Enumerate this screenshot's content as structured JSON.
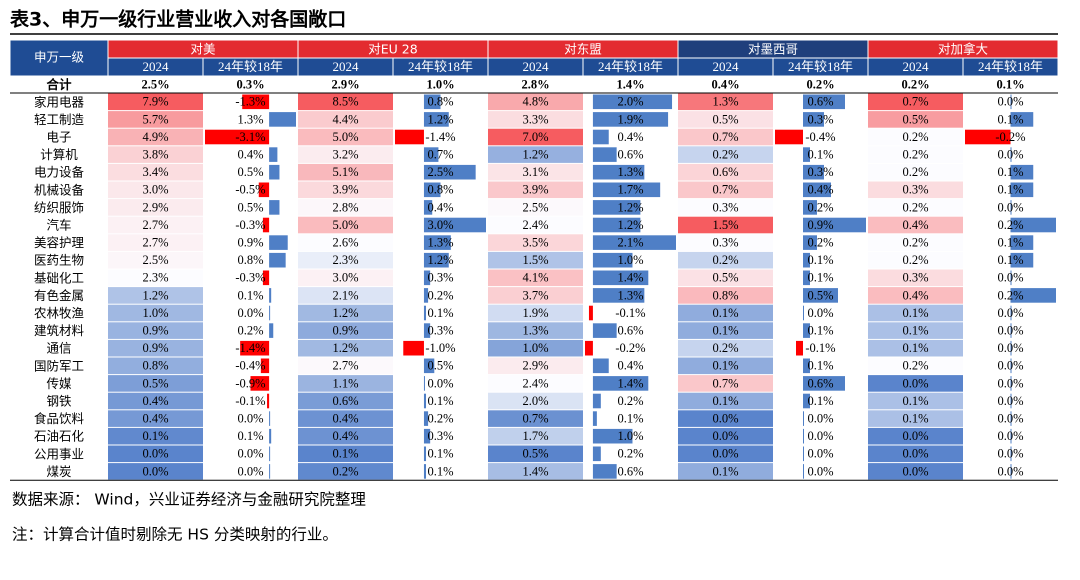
{
  "title": "表3、申万一级行业营业收入对各国敞口",
  "table": {
    "first_header": "申万一级",
    "groups": [
      {
        "name": "对美",
        "color": "#e32b30"
      },
      {
        "name": "对EU 28",
        "color": "#e32b30"
      },
      {
        "name": "对东盟",
        "color": "#e32b30"
      },
      {
        "name": "对墨西哥",
        "color": "#1f3f7c"
      },
      {
        "name": "对加拿大",
        "color": "#e32b30"
      }
    ],
    "header_color": "#1f4c94",
    "subheaders": [
      "2024",
      "24年较18年"
    ],
    "total": {
      "name": "合计",
      "values": [
        2.5,
        0.3,
        2.9,
        1.0,
        2.8,
        1.4,
        0.4,
        0.2,
        0.2,
        0.1
      ],
      "value_labels": [
        "2.5%",
        "0.3%",
        "2.9%",
        "1.0%",
        "2.8%",
        "1.4%",
        "0.4%",
        "0.2%",
        "0.2%",
        "0.1%"
      ]
    },
    "rows": [
      {
        "name": "家用电器",
        "values": [
          7.9,
          -1.3,
          8.5,
          0.8,
          4.8,
          2.0,
          1.3,
          0.6,
          0.7,
          0.0
        ],
        "value_labels": [
          "7.9%",
          "-1.3%",
          "8.5%",
          "0.8%",
          "4.8%",
          "2.0%",
          "1.3%",
          "0.6%",
          "0.7%",
          "0.0%"
        ]
      },
      {
        "name": "轻工制造",
        "values": [
          5.7,
          1.3,
          4.4,
          1.2,
          3.3,
          1.9,
          0.5,
          0.3,
          0.5,
          0.1
        ],
        "value_labels": [
          "5.7%",
          "1.3%",
          "4.4%",
          "1.2%",
          "3.3%",
          "1.9%",
          "0.5%",
          "0.3%",
          "0.5%",
          "0.1%"
        ]
      },
      {
        "name": "电子",
        "values": [
          4.9,
          -3.1,
          5.0,
          -1.4,
          7.0,
          0.4,
          0.7,
          -0.4,
          0.2,
          -0.2
        ],
        "value_labels": [
          "4.9%",
          "-3.1%",
          "5.0%",
          "-1.4%",
          "7.0%",
          "0.4%",
          "0.7%",
          "-0.4%",
          "0.2%",
          "-0.2%"
        ]
      },
      {
        "name": "计算机",
        "values": [
          3.8,
          0.4,
          3.2,
          0.7,
          1.2,
          0.6,
          0.2,
          0.1,
          0.2,
          0.0
        ],
        "value_labels": [
          "3.8%",
          "0.4%",
          "3.2%",
          "0.7%",
          "1.2%",
          "0.6%",
          "0.2%",
          "0.1%",
          "0.2%",
          "0.0%"
        ]
      },
      {
        "name": "电力设备",
        "values": [
          3.4,
          0.5,
          5.1,
          2.5,
          3.1,
          1.3,
          0.6,
          0.3,
          0.2,
          0.1
        ],
        "value_labels": [
          "3.4%",
          "0.5%",
          "5.1%",
          "2.5%",
          "3.1%",
          "1.3%",
          "0.6%",
          "0.3%",
          "0.2%",
          "0.1%"
        ]
      },
      {
        "name": "机械设备",
        "values": [
          3.0,
          -0.5,
          3.9,
          0.8,
          3.9,
          1.7,
          0.7,
          0.4,
          0.3,
          0.1
        ],
        "value_labels": [
          "3.0%",
          "-0.5%",
          "3.9%",
          "0.8%",
          "3.9%",
          "1.7%",
          "0.7%",
          "0.4%",
          "0.3%",
          "0.1%"
        ]
      },
      {
        "name": "纺织服饰",
        "values": [
          2.9,
          0.5,
          2.8,
          0.4,
          2.5,
          1.2,
          0.3,
          0.2,
          0.2,
          0.0
        ],
        "value_labels": [
          "2.9%",
          "0.5%",
          "2.8%",
          "0.4%",
          "2.5%",
          "1.2%",
          "0.3%",
          "0.2%",
          "0.2%",
          "0.0%"
        ]
      },
      {
        "name": "汽车",
        "values": [
          2.7,
          -0.3,
          5.0,
          3.0,
          2.4,
          1.2,
          1.5,
          0.9,
          0.4,
          0.2
        ],
        "value_labels": [
          "2.7%",
          "-0.3%",
          "5.0%",
          "3.0%",
          "2.4%",
          "1.2%",
          "1.5%",
          "0.9%",
          "0.4%",
          "0.2%"
        ]
      },
      {
        "name": "美容护理",
        "values": [
          2.7,
          0.9,
          2.6,
          1.3,
          3.5,
          2.1,
          0.3,
          0.2,
          0.2,
          0.1
        ],
        "value_labels": [
          "2.7%",
          "0.9%",
          "2.6%",
          "1.3%",
          "3.5%",
          "2.1%",
          "0.3%",
          "0.2%",
          "0.2%",
          "0.1%"
        ]
      },
      {
        "name": "医药生物",
        "values": [
          2.5,
          0.8,
          2.3,
          1.2,
          1.5,
          1.0,
          0.2,
          0.1,
          0.2,
          0.1
        ],
        "value_labels": [
          "2.5%",
          "0.8%",
          "2.3%",
          "1.2%",
          "1.5%",
          "1.0%",
          "0.2%",
          "0.1%",
          "0.2%",
          "0.1%"
        ]
      },
      {
        "name": "基础化工",
        "values": [
          2.3,
          -0.3,
          3.0,
          0.3,
          4.1,
          1.4,
          0.5,
          0.1,
          0.3,
          0.0
        ],
        "value_labels": [
          "2.3%",
          "-0.3%",
          "3.0%",
          "0.3%",
          "4.1%",
          "1.4%",
          "0.5%",
          "0.1%",
          "0.3%",
          "0.0%"
        ]
      },
      {
        "name": "有色金属",
        "values": [
          1.2,
          0.1,
          2.1,
          0.2,
          3.7,
          1.3,
          0.8,
          0.5,
          0.4,
          0.2
        ],
        "value_labels": [
          "1.2%",
          "0.1%",
          "2.1%",
          "0.2%",
          "3.7%",
          "1.3%",
          "0.8%",
          "0.5%",
          "0.4%",
          "0.2%"
        ]
      },
      {
        "name": "农林牧渔",
        "values": [
          1.0,
          0.0,
          1.2,
          0.1,
          1.9,
          -0.1,
          0.1,
          0.0,
          0.1,
          0.0
        ],
        "value_labels": [
          "1.0%",
          "0.0%",
          "1.2%",
          "0.1%",
          "1.9%",
          "-0.1%",
          "0.1%",
          "0.0%",
          "0.1%",
          "0.0%"
        ]
      },
      {
        "name": "建筑材料",
        "values": [
          0.9,
          0.2,
          0.9,
          0.3,
          1.3,
          0.6,
          0.1,
          0.1,
          0.1,
          0.0
        ],
        "value_labels": [
          "0.9%",
          "0.2%",
          "0.9%",
          "0.3%",
          "1.3%",
          "0.6%",
          "0.1%",
          "0.1%",
          "0.1%",
          "0.0%"
        ]
      },
      {
        "name": "通信",
        "values": [
          0.9,
          -1.4,
          1.2,
          -1.0,
          1.0,
          -0.2,
          0.2,
          -0.1,
          0.1,
          0.0
        ],
        "value_labels": [
          "0.9%",
          "-1.4%",
          "1.2%",
          "-1.0%",
          "1.0%",
          "-0.2%",
          "0.2%",
          "-0.1%",
          "0.1%",
          "0.0%"
        ]
      },
      {
        "name": "国防军工",
        "values": [
          0.8,
          -0.4,
          2.7,
          0.5,
          2.9,
          0.4,
          0.1,
          0.1,
          0.2,
          0.0
        ],
        "value_labels": [
          "0.8%",
          "-0.4%",
          "2.7%",
          "0.5%",
          "2.9%",
          "0.4%",
          "0.1%",
          "0.1%",
          "0.2%",
          "0.0%"
        ]
      },
      {
        "name": "传媒",
        "values": [
          0.5,
          -0.9,
          1.1,
          0.0,
          2.4,
          1.4,
          0.7,
          0.6,
          0.0,
          0.0
        ],
        "value_labels": [
          "0.5%",
          "-0.9%",
          "1.1%",
          "0.0%",
          "2.4%",
          "1.4%",
          "0.7%",
          "0.6%",
          "0.0%",
          "0.0%"
        ]
      },
      {
        "name": "钢铁",
        "values": [
          0.4,
          -0.1,
          0.6,
          0.1,
          2.0,
          0.2,
          0.1,
          0.1,
          0.1,
          0.0
        ],
        "value_labels": [
          "0.4%",
          "-0.1%",
          "0.6%",
          "0.1%",
          "2.0%",
          "0.2%",
          "0.1%",
          "0.1%",
          "0.1%",
          "0.0%"
        ]
      },
      {
        "name": "食品饮料",
        "values": [
          0.4,
          0.0,
          0.4,
          0.2,
          0.7,
          0.1,
          0.0,
          0.0,
          0.1,
          0.0
        ],
        "value_labels": [
          "0.4%",
          "0.0%",
          "0.4%",
          "0.2%",
          "0.7%",
          "0.1%",
          "0.0%",
          "0.0%",
          "0.1%",
          "0.0%"
        ]
      },
      {
        "name": "石油石化",
        "values": [
          0.1,
          0.1,
          0.4,
          0.3,
          1.7,
          1.0,
          0.0,
          0.0,
          0.0,
          0.0
        ],
        "value_labels": [
          "0.1%",
          "0.1%",
          "0.4%",
          "0.3%",
          "1.7%",
          "1.0%",
          "0.0%",
          "0.0%",
          "0.0%",
          "0.0%"
        ]
      },
      {
        "name": "公用事业",
        "values": [
          0.0,
          0.0,
          0.1,
          0.1,
          0.5,
          0.2,
          0.0,
          0.0,
          0.0,
          0.0
        ],
        "value_labels": [
          "0.0%",
          "0.0%",
          "0.1%",
          "0.1%",
          "0.5%",
          "0.2%",
          "0.0%",
          "0.0%",
          "0.0%",
          "0.0%"
        ]
      },
      {
        "name": "煤炭",
        "values": [
          0.0,
          0.0,
          0.2,
          0.1,
          1.4,
          0.6,
          0.1,
          0.0,
          0.0,
          0.0
        ],
        "value_labels": [
          "0.0%",
          "0.0%",
          "0.2%",
          "0.1%",
          "1.4%",
          "0.6%",
          "0.1%",
          "0.0%",
          "0.0%",
          "0.0%"
        ]
      }
    ]
  },
  "notes": [
    "数据来源： Wind，兴业证券经济与金融研究院整理",
    "注：计算合计值时剔除无 HS 分类映射的行业。"
  ]
}
